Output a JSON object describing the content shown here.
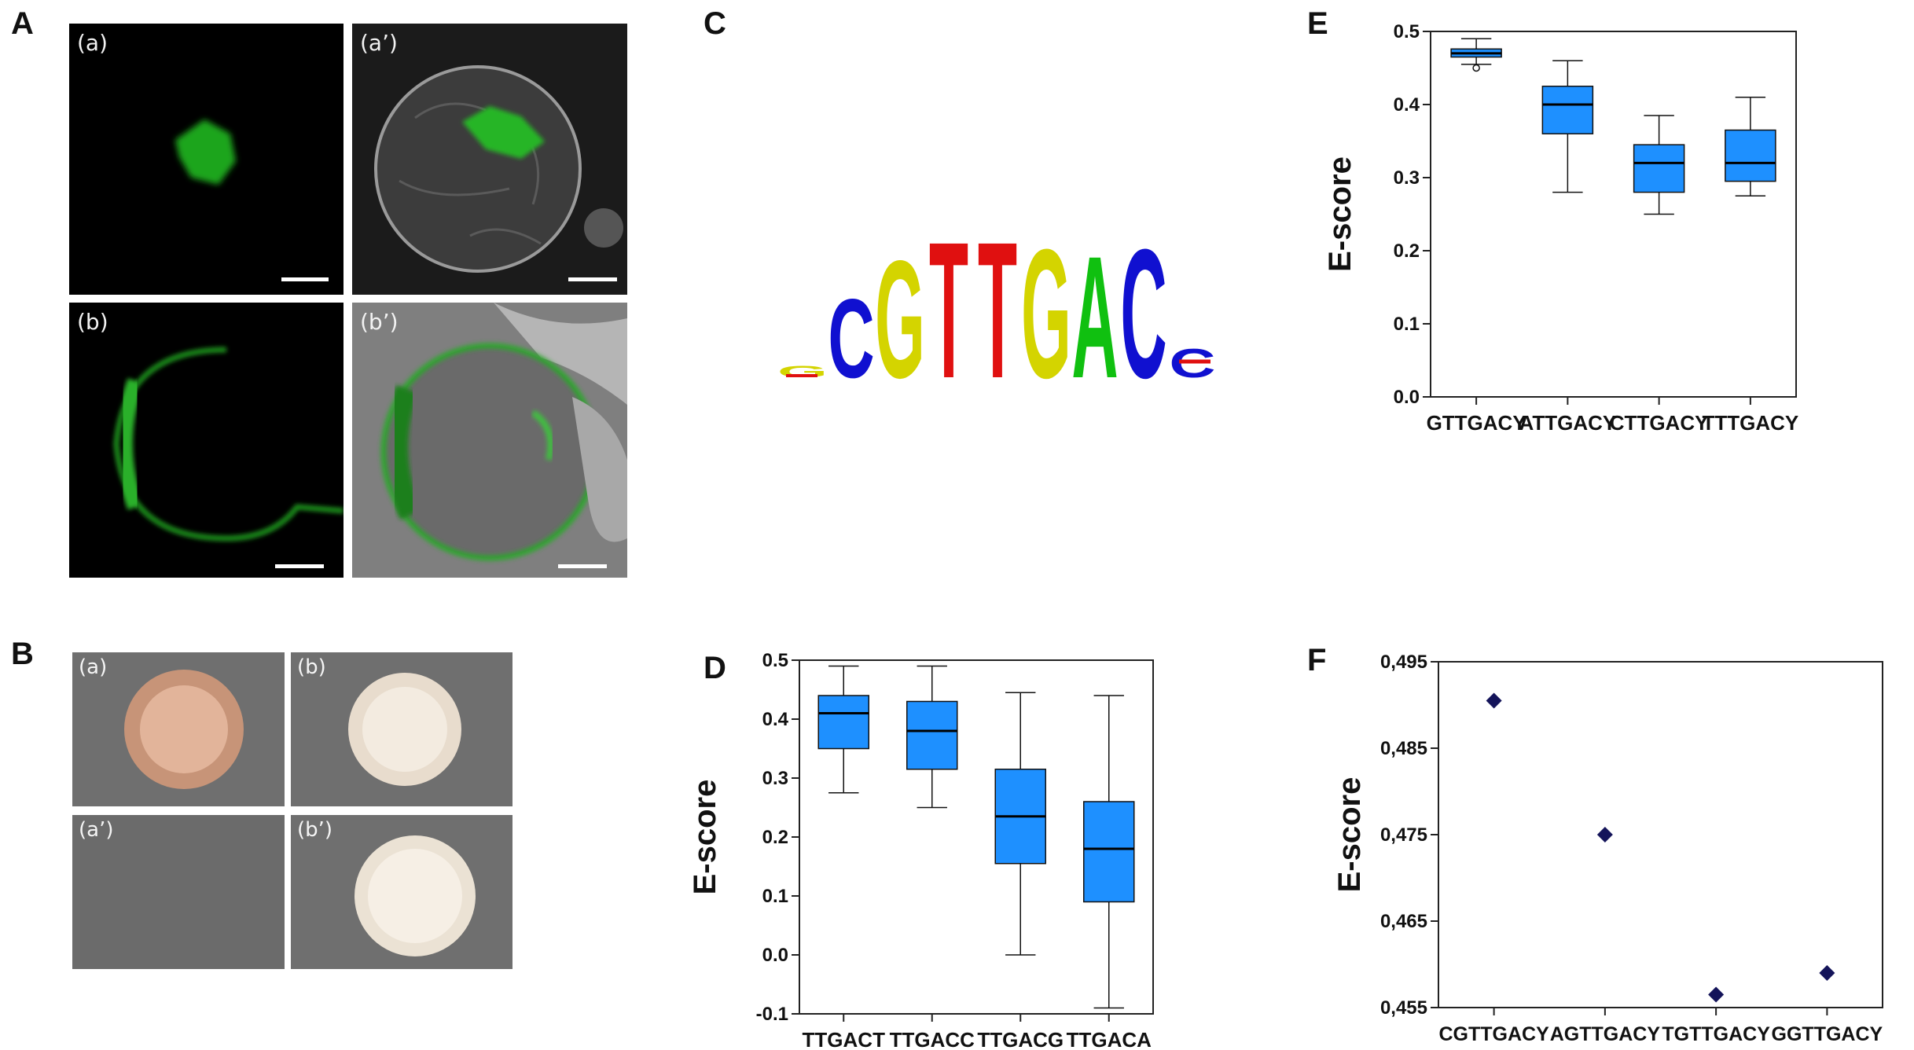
{
  "panels": {
    "A": {
      "letter": "A",
      "images": [
        {
          "label": "(a)",
          "kind": "nucleus-fluorescence"
        },
        {
          "label": "(a’)",
          "kind": "nucleus-merge"
        },
        {
          "label": "(b)",
          "kind": "membrane-fluorescence"
        },
        {
          "label": "(b’)",
          "kind": "membrane-merge"
        }
      ]
    },
    "B": {
      "letter": "B",
      "plates": [
        {
          "label": "(a)",
          "colony": "pink"
        },
        {
          "label": "(b)",
          "colony": "cream"
        },
        {
          "label": "(a’)",
          "colony": "none"
        },
        {
          "label": "(b’)",
          "colony": "cream"
        }
      ]
    },
    "C": {
      "letter": "C",
      "logo": [
        {
          "letter": "G",
          "color": "#d4d400",
          "height": 0.08
        },
        {
          "letter": "C",
          "color": "#1010d0",
          "height": 0.55
        },
        {
          "letter": "G",
          "color": "#d4d400",
          "height": 0.82
        },
        {
          "letter": "T",
          "color": "#e01010",
          "height": 0.95
        },
        {
          "letter": "T",
          "color": "#e01010",
          "height": 0.95
        },
        {
          "letter": "G",
          "color": "#d4d400",
          "height": 0.9
        },
        {
          "letter": "A",
          "color": "#10c010",
          "height": 0.85
        },
        {
          "letter": "C",
          "color": "#1010d0",
          "height": 0.9
        },
        {
          "letter": "C",
          "color": "#1010d0",
          "height": 0.2
        }
      ]
    },
    "D": {
      "letter": "D"
    },
    "E": {
      "letter": "E"
    },
    "F": {
      "letter": "F"
    }
  },
  "chart_data": [
    {
      "id": "D",
      "type": "box",
      "ylabel": "E-score",
      "ylim": [
        -0.1,
        0.5
      ],
      "yticks": [
        "-0.1",
        "0.0",
        "0.1",
        "0.2",
        "0.3",
        "0.4",
        "0.5"
      ],
      "categories": [
        "TTGACT",
        "TTGACC",
        "TTGACG",
        "TTGACA"
      ],
      "boxes": [
        {
          "min": 0.275,
          "q1": 0.35,
          "median": 0.41,
          "q3": 0.44,
          "max": 0.49
        },
        {
          "min": 0.25,
          "q1": 0.315,
          "median": 0.38,
          "q3": 0.43,
          "max": 0.49
        },
        {
          "min": 0.0,
          "q1": 0.155,
          "median": 0.235,
          "q3": 0.315,
          "max": 0.445
        },
        {
          "min": -0.09,
          "q1": 0.09,
          "median": 0.18,
          "q3": 0.26,
          "max": 0.44
        }
      ],
      "outliers": [],
      "box_color": "#1e90ff"
    },
    {
      "id": "E",
      "type": "box",
      "ylabel": "E-score",
      "ylim": [
        0.0,
        0.5
      ],
      "yticks": [
        "0.0",
        "0.1",
        "0.2",
        "0.3",
        "0.4",
        "0.5"
      ],
      "categories": [
        "GTTGACY",
        "ATTGACY",
        "CTTGACY",
        "TTTGACY"
      ],
      "boxes": [
        {
          "min": 0.455,
          "q1": 0.465,
          "median": 0.47,
          "q3": 0.476,
          "max": 0.49
        },
        {
          "min": 0.28,
          "q1": 0.36,
          "median": 0.4,
          "q3": 0.425,
          "max": 0.46
        },
        {
          "min": 0.25,
          "q1": 0.28,
          "median": 0.32,
          "q3": 0.345,
          "max": 0.385
        },
        {
          "min": 0.275,
          "q1": 0.295,
          "median": 0.32,
          "q3": 0.365,
          "max": 0.41
        }
      ],
      "outliers": [
        {
          "category": 0,
          "value": 0.45
        }
      ],
      "box_color": "#1e90ff"
    },
    {
      "id": "F",
      "type": "scatter",
      "ylabel": "E-score",
      "ylim": [
        0.455,
        0.495
      ],
      "yticks": [
        "0,455",
        "0,465",
        "0,475",
        "0,485",
        "0,495"
      ],
      "categories": [
        "CGTTGACY",
        "AGTTGACY",
        "TGTTGACY",
        "GGTTGACY"
      ],
      "values": [
        0.4905,
        0.475,
        0.4565,
        0.459
      ],
      "marker_color": "#14145a"
    }
  ]
}
